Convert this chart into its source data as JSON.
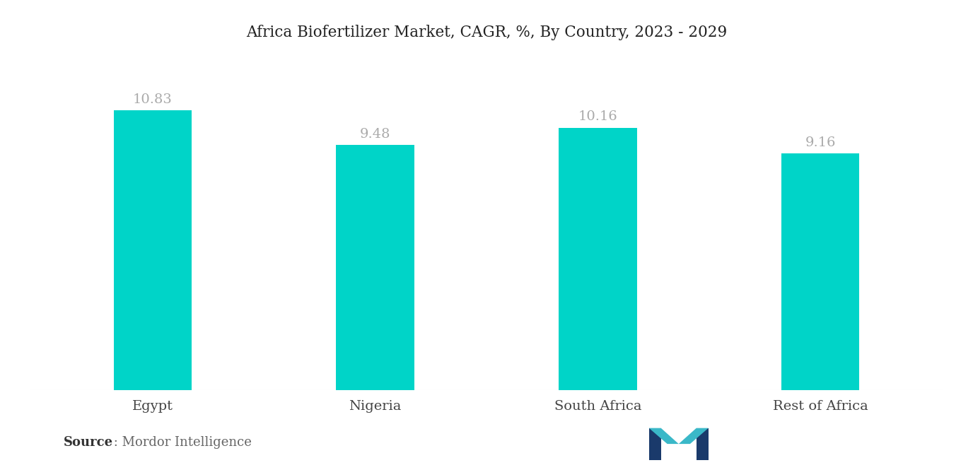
{
  "title": "Africa Biofertilizer Market, CAGR, %, By Country, 2023 - 2029",
  "categories": [
    "Egypt",
    "Nigeria",
    "South Africa",
    "Rest of Africa"
  ],
  "values": [
    10.83,
    9.48,
    10.16,
    9.16
  ],
  "bar_color": "#00D4C8",
  "value_labels": [
    "10.83",
    "9.48",
    "10.16",
    "9.16"
  ],
  "ylim": [
    0,
    13
  ],
  "background_color": "#ffffff",
  "title_fontsize": 15.5,
  "tick_fontsize": 14,
  "value_label_fontsize": 14,
  "value_label_color": "#aaaaaa",
  "source_bold": "Source",
  "source_normal": " : Mordor Intelligence",
  "bar_width": 0.35,
  "xlim_left": -0.55,
  "xlim_right": 3.55
}
